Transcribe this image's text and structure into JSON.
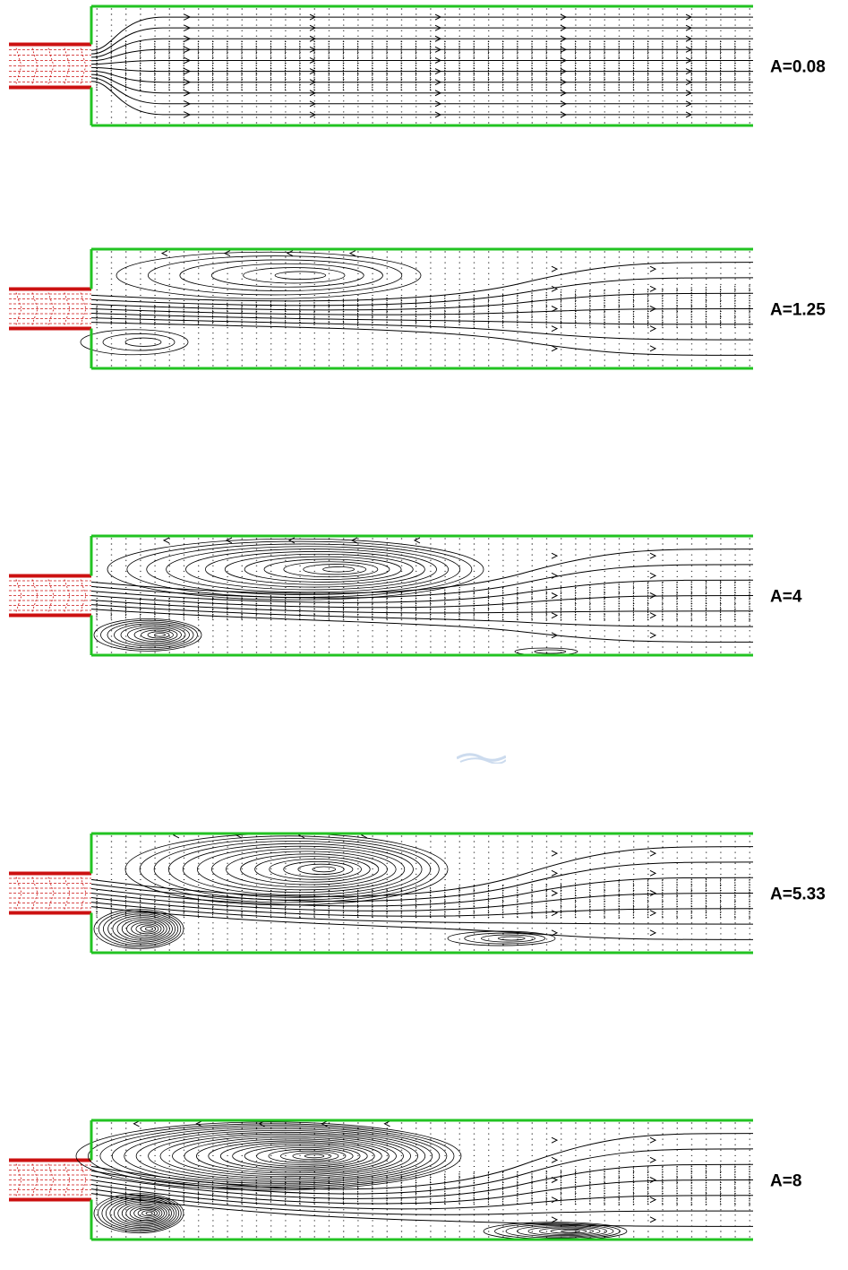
{
  "panels": [
    {
      "label": "A=0.08",
      "A": 0.08
    },
    {
      "label": "A=1.25",
      "A": 1.25
    },
    {
      "label": "A=4",
      "A": 4
    },
    {
      "label": "A=5.33",
      "A": 5.33
    },
    {
      "label": "A=8",
      "A": 8
    }
  ],
  "colors": {
    "wall": "#22c322",
    "inlet": "#cc1111",
    "streamline": "#000000",
    "vector": "#000000",
    "watermark": "#6f9bd0"
  }
}
